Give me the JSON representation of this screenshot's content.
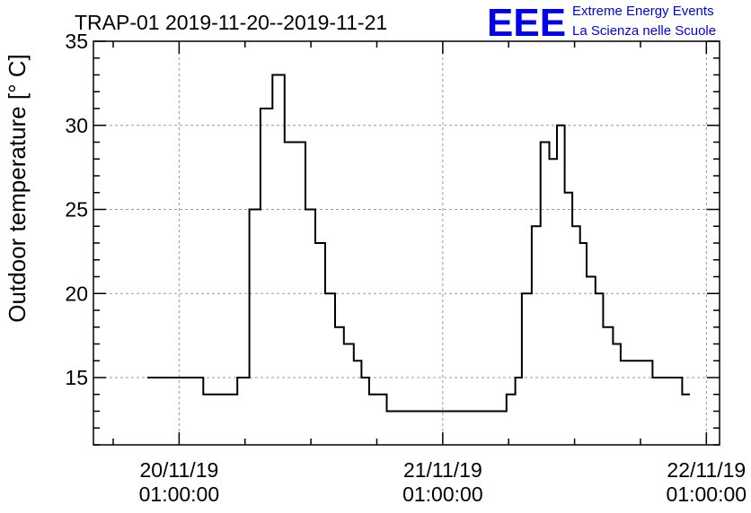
{
  "title": "TRAP-01 2019-11-20--2019-11-21",
  "logo": {
    "letters": "EEE",
    "line1": "Extreme Energy Events",
    "line2": "La Scienza nelle Scuole",
    "color": "#0000ee"
  },
  "chart_data": {
    "type": "line",
    "step": true,
    "title": "TRAP-01 2019-11-20--2019-11-21",
    "ylabel": "Outdoor temperature [° C]",
    "xlabel": "",
    "x_ticks": [
      {
        "date": "20/11/19",
        "time": "01:00:00",
        "hours": 0
      },
      {
        "date": "21/11/19",
        "time": "01:00:00",
        "hours": 24
      },
      {
        "date": "22/11/19",
        "time": "01:00:00",
        "hours": 48
      }
    ],
    "y_ticks": [
      15,
      20,
      25,
      30,
      35
    ],
    "xlim_hours": [
      -7.8,
      49.2
    ],
    "ylim": [
      11,
      35
    ],
    "grid": true,
    "series": [
      {
        "points_x_hours": [
          -2.9,
          -2.9,
          2.2,
          5.3,
          6.4,
          7.4,
          8.5,
          9.6,
          11.5,
          12.4,
          13.3,
          14.2,
          15.0,
          15.9,
          16.6,
          17.3,
          18.9,
          29.8,
          30.6,
          31.2,
          32.1,
          32.9,
          33.7,
          34.4,
          35.1,
          35.8,
          36.5,
          37.1,
          37.9,
          38.6,
          39.5,
          40.2,
          41.6,
          43.1,
          44.1,
          45.8,
          46.5
        ],
        "values": [
          15,
          15,
          14,
          15,
          25,
          31,
          33,
          29,
          25,
          23,
          20,
          18,
          17,
          16,
          15,
          14,
          13,
          14,
          15,
          20,
          24,
          29,
          28,
          30,
          26,
          24,
          23,
          21,
          20,
          18,
          17,
          16,
          16,
          15,
          15,
          14,
          14
        ]
      }
    ]
  }
}
